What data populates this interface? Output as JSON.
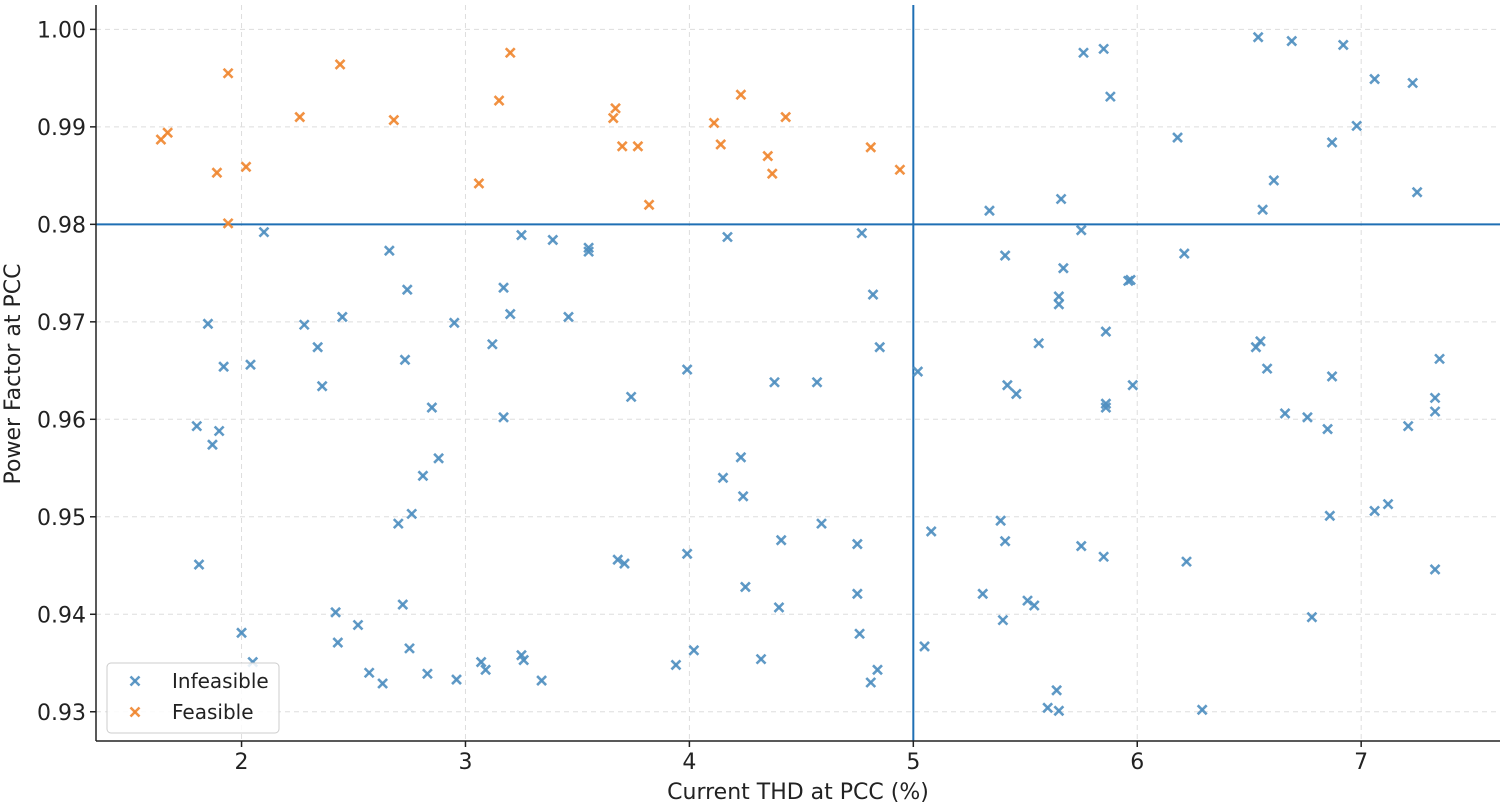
{
  "chart_data": {
    "type": "scatter",
    "title": "",
    "xlabel": "Current THD at PCC (%)",
    "ylabel": "Power Factor at PCC",
    "xlim": [
      1.35,
      7.62
    ],
    "ylim": [
      0.927,
      1.0025
    ],
    "xticks": [
      2,
      3,
      4,
      5,
      6,
      7
    ],
    "yticks": [
      0.93,
      0.94,
      0.95,
      0.96,
      0.97,
      0.98,
      0.99,
      1.0
    ],
    "xtick_labels": [
      "2",
      "3",
      "4",
      "5",
      "6",
      "7"
    ],
    "ytick_labels": [
      "0.93",
      "0.94",
      "0.95",
      "0.96",
      "0.97",
      "0.98",
      "0.99",
      "1.00"
    ],
    "grid": true,
    "legend_position": "bottom-left",
    "thresholds": {
      "x": 5.0,
      "y": 0.98
    },
    "series": [
      {
        "name": "Infeasible",
        "color": "#4f8fc0",
        "marker": "x",
        "points": [
          [
            1.85,
            0.9698
          ],
          [
            1.8,
            0.9593
          ],
          [
            1.87,
            0.9574
          ],
          [
            1.9,
            0.9588
          ],
          [
            1.92,
            0.9654
          ],
          [
            1.81,
            0.9451
          ],
          [
            2.0,
            0.9381
          ],
          [
            2.05,
            0.9351
          ],
          [
            2.04,
            0.9656
          ],
          [
            2.1,
            0.9792
          ],
          [
            2.28,
            0.9697
          ],
          [
            2.34,
            0.9674
          ],
          [
            2.36,
            0.9634
          ],
          [
            2.42,
            0.9402
          ],
          [
            2.43,
            0.9371
          ],
          [
            2.45,
            0.9705
          ],
          [
            2.52,
            0.9389
          ],
          [
            2.57,
            0.934
          ],
          [
            2.63,
            0.9329
          ],
          [
            2.66,
            0.9773
          ],
          [
            2.7,
            0.9493
          ],
          [
            2.72,
            0.941
          ],
          [
            2.73,
            0.9661
          ],
          [
            2.74,
            0.9733
          ],
          [
            2.75,
            0.9365
          ],
          [
            2.76,
            0.9503
          ],
          [
            2.81,
            0.9542
          ],
          [
            2.83,
            0.9339
          ],
          [
            2.85,
            0.9612
          ],
          [
            2.88,
            0.956
          ],
          [
            2.95,
            0.9699
          ],
          [
            2.96,
            0.9333
          ],
          [
            3.07,
            0.9351
          ],
          [
            3.09,
            0.9343
          ],
          [
            3.12,
            0.9677
          ],
          [
            3.17,
            0.9735
          ],
          [
            3.17,
            0.9602
          ],
          [
            3.2,
            0.9708
          ],
          [
            3.25,
            0.9789
          ],
          [
            3.25,
            0.9358
          ],
          [
            3.26,
            0.9353
          ],
          [
            3.34,
            0.9332
          ],
          [
            3.39,
            0.9784
          ],
          [
            3.46,
            0.9705
          ],
          [
            3.55,
            0.9776
          ],
          [
            3.55,
            0.9772
          ],
          [
            3.68,
            0.9456
          ],
          [
            3.71,
            0.9452
          ],
          [
            3.74,
            0.9623
          ],
          [
            3.94,
            0.9348
          ],
          [
            3.99,
            0.9651
          ],
          [
            3.99,
            0.9462
          ],
          [
            4.02,
            0.9363
          ],
          [
            4.15,
            0.954
          ],
          [
            4.17,
            0.9787
          ],
          [
            4.23,
            0.9561
          ],
          [
            4.24,
            0.9521
          ],
          [
            4.25,
            0.9428
          ],
          [
            4.32,
            0.9354
          ],
          [
            4.38,
            0.9638
          ],
          [
            4.4,
            0.9407
          ],
          [
            4.41,
            0.9476
          ],
          [
            4.57,
            0.9638
          ],
          [
            4.59,
            0.9493
          ],
          [
            4.75,
            0.9421
          ],
          [
            4.75,
            0.9472
          ],
          [
            4.76,
            0.938
          ],
          [
            4.77,
            0.9791
          ],
          [
            4.81,
            0.933
          ],
          [
            4.82,
            0.9728
          ],
          [
            4.84,
            0.9343
          ],
          [
            4.85,
            0.9674
          ],
          [
            5.02,
            0.9649
          ],
          [
            5.05,
            0.9367
          ],
          [
            5.08,
            0.9485
          ],
          [
            5.31,
            0.9421
          ],
          [
            5.34,
            0.9814
          ],
          [
            5.39,
            0.9496
          ],
          [
            5.4,
            0.9394
          ],
          [
            5.41,
            0.9768
          ],
          [
            5.41,
            0.9475
          ],
          [
            5.42,
            0.9635
          ],
          [
            5.46,
            0.9626
          ],
          [
            5.51,
            0.9414
          ],
          [
            5.54,
            0.9409
          ],
          [
            5.56,
            0.9678
          ],
          [
            5.6,
            0.9304
          ],
          [
            5.64,
            0.9322
          ],
          [
            5.65,
            0.9726
          ],
          [
            5.65,
            0.9718
          ],
          [
            5.65,
            0.9301
          ],
          [
            5.66,
            0.9826
          ],
          [
            5.67,
            0.9755
          ],
          [
            5.75,
            0.9794
          ],
          [
            5.75,
            0.947
          ],
          [
            5.76,
            0.9976
          ],
          [
            5.85,
            0.9459
          ],
          [
            5.85,
            0.998
          ],
          [
            5.86,
            0.9616
          ],
          [
            5.86,
            0.9612
          ],
          [
            5.86,
            0.969
          ],
          [
            5.88,
            0.9931
          ],
          [
            5.96,
            0.9742
          ],
          [
            5.97,
            0.9743
          ],
          [
            5.98,
            0.9635
          ],
          [
            6.18,
            0.9889
          ],
          [
            6.21,
            0.977
          ],
          [
            6.22,
            0.9454
          ],
          [
            6.29,
            0.9302
          ],
          [
            6.53,
            0.9674
          ],
          [
            6.54,
            0.9992
          ],
          [
            6.55,
            0.968
          ],
          [
            6.56,
            0.9815
          ],
          [
            6.58,
            0.9652
          ],
          [
            6.61,
            0.9845
          ],
          [
            6.66,
            0.9606
          ],
          [
            6.69,
            0.9988
          ],
          [
            6.76,
            0.9602
          ],
          [
            6.78,
            0.9397
          ],
          [
            6.85,
            0.959
          ],
          [
            6.86,
            0.9501
          ],
          [
            6.87,
            0.9644
          ],
          [
            6.87,
            0.9884
          ],
          [
            6.92,
            0.9984
          ],
          [
            6.98,
            0.9901
          ],
          [
            7.06,
            0.9949
          ],
          [
            7.06,
            0.9506
          ],
          [
            7.12,
            0.9513
          ],
          [
            7.21,
            0.9593
          ],
          [
            7.23,
            0.9945
          ],
          [
            7.25,
            0.9833
          ],
          [
            7.33,
            0.9622
          ],
          [
            7.33,
            0.9608
          ],
          [
            7.33,
            0.9446
          ],
          [
            7.35,
            0.9662
          ]
        ]
      },
      {
        "name": "Feasible",
        "color": "#f0862f",
        "marker": "x",
        "points": [
          [
            1.64,
            0.9887
          ],
          [
            1.67,
            0.9894
          ],
          [
            1.89,
            0.9853
          ],
          [
            1.94,
            0.9955
          ],
          [
            1.94,
            0.9801
          ],
          [
            2.02,
            0.9859
          ],
          [
            2.26,
            0.991
          ],
          [
            2.44,
            0.9964
          ],
          [
            2.68,
            0.9907
          ],
          [
            3.06,
            0.9842
          ],
          [
            3.15,
            0.9927
          ],
          [
            3.2,
            0.9976
          ],
          [
            3.66,
            0.9909
          ],
          [
            3.67,
            0.9919
          ],
          [
            3.7,
            0.988
          ],
          [
            3.77,
            0.988
          ],
          [
            3.82,
            0.982
          ],
          [
            4.11,
            0.9904
          ],
          [
            4.14,
            0.9882
          ],
          [
            4.23,
            0.9933
          ],
          [
            4.35,
            0.987
          ],
          [
            4.37,
            0.9852
          ],
          [
            4.43,
            0.991
          ],
          [
            4.81,
            0.9879
          ],
          [
            4.94,
            0.9856
          ]
        ]
      }
    ]
  }
}
